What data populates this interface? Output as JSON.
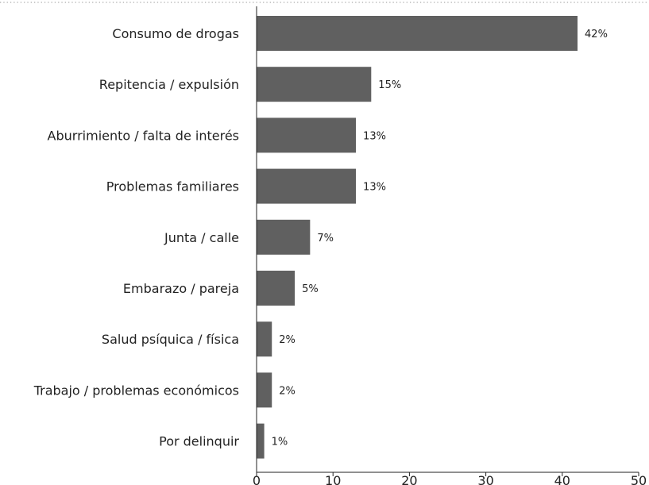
{
  "chart_data": {
    "type": "bar",
    "orientation": "horizontal",
    "title": "",
    "xlabel": "",
    "ylabel": "",
    "categories": [
      "Consumo de drogas",
      "Repitencia / expulsión",
      "Aburrimiento / falta de interés",
      "Problemas familiares",
      "Junta / calle",
      "Embarazo / pareja",
      "Salud psíquica / física",
      "Trabajo / problemas económicos",
      "Por delinquir"
    ],
    "values": [
      42,
      15,
      13,
      13,
      7,
      5,
      2,
      2,
      1
    ],
    "data_labels": [
      "42%",
      "15%",
      "13%",
      "13%",
      "7%",
      "5%",
      "2%",
      "2%",
      "1%"
    ],
    "xlim": [
      0,
      50
    ],
    "x_ticks": [
      0,
      10,
      20,
      30,
      40,
      50
    ],
    "x_tick_labels": [
      "0",
      "10",
      "20",
      "30",
      "40",
      "50"
    ],
    "grid": false,
    "legend": "none",
    "bar_color": "#606060",
    "axis_color": "#222222",
    "top_border_color": "#aaaaaa"
  }
}
